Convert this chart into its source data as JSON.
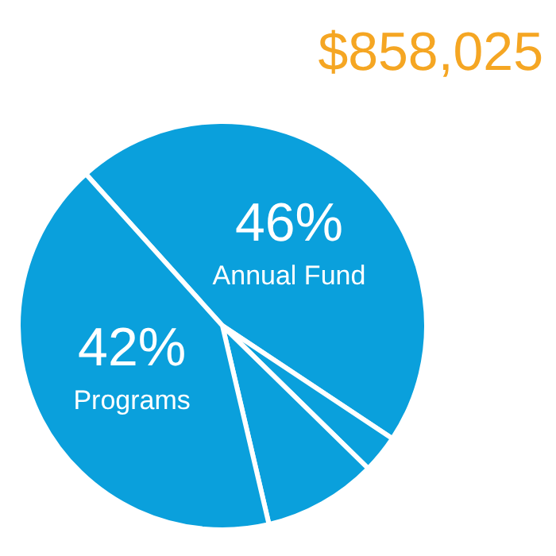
{
  "chart_data": {
    "type": "pie",
    "title": "$858,025",
    "categories": [
      "Annual Fund",
      null,
      null,
      "Programs"
    ],
    "values": [
      46,
      3,
      9,
      42
    ],
    "colors": [
      "#0aa0dc",
      "#0aa0dc",
      "#0aa0dc",
      "#0aa0dc"
    ],
    "value_labels": [
      "46%",
      null,
      null,
      "42%"
    ],
    "legend": false
  }
}
